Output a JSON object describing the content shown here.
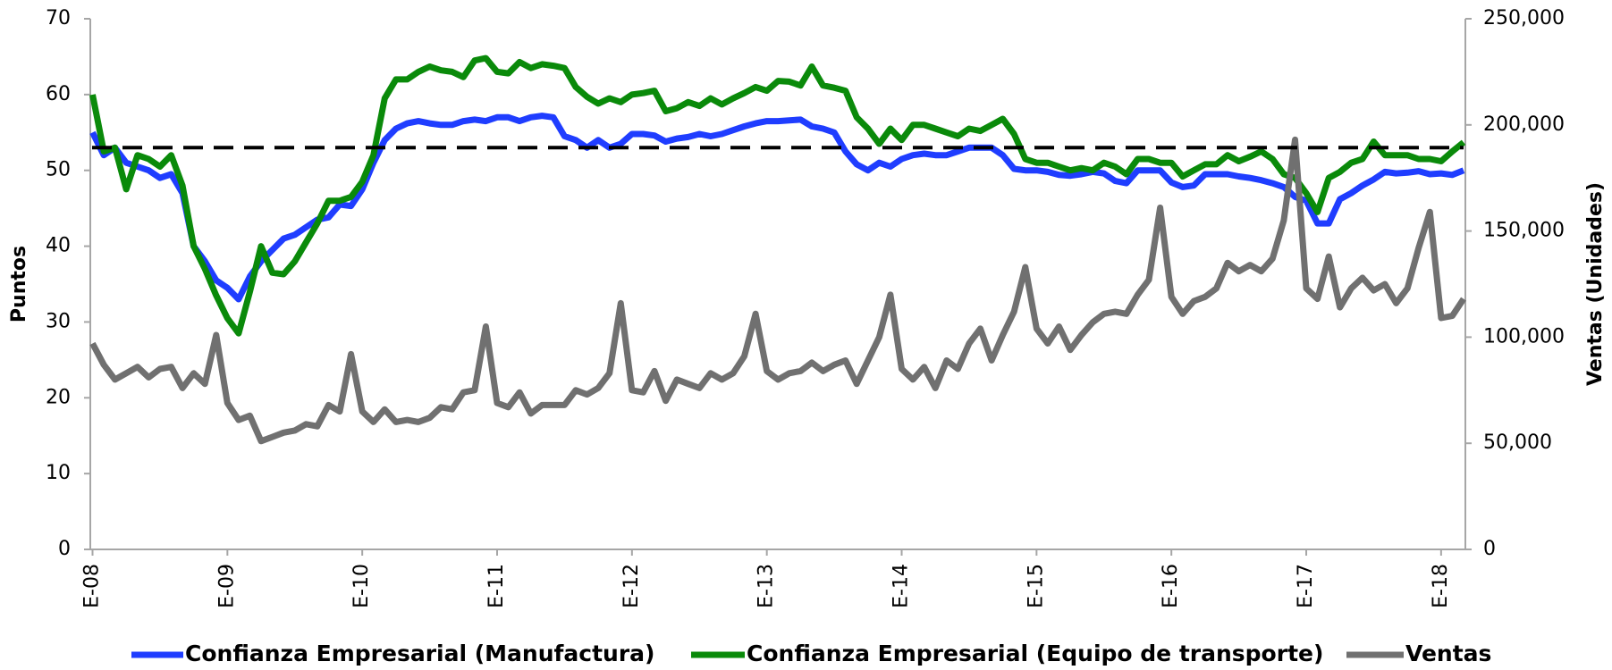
{
  "chart_data": {
    "type": "line",
    "y_label": "Puntos",
    "y2_label": "Ventas (Unidades)",
    "categories": [
      "E-08",
      null,
      null,
      null,
      null,
      null,
      null,
      null,
      null,
      null,
      null,
      null,
      "E-09",
      null,
      null,
      null,
      null,
      null,
      null,
      null,
      null,
      null,
      null,
      null,
      "E-10",
      null,
      null,
      null,
      null,
      null,
      null,
      null,
      null,
      null,
      null,
      null,
      "E-11",
      null,
      null,
      null,
      null,
      null,
      null,
      null,
      null,
      null,
      null,
      null,
      "E-12",
      null,
      null,
      null,
      null,
      null,
      null,
      null,
      null,
      null,
      null,
      null,
      "E-13",
      null,
      null,
      null,
      null,
      null,
      null,
      null,
      null,
      null,
      null,
      null,
      "E-14",
      null,
      null,
      null,
      null,
      null,
      null,
      null,
      null,
      null,
      null,
      null,
      "E-15",
      null,
      null,
      null,
      null,
      null,
      null,
      null,
      null,
      null,
      null,
      null,
      "E-16",
      null,
      null,
      null,
      null,
      null,
      null,
      null,
      null,
      null,
      null,
      null,
      "E-17",
      null,
      null,
      null,
      null,
      null,
      null,
      null,
      null,
      null,
      null,
      null,
      "E-18",
      null,
      null
    ],
    "series": [
      {
        "name": "Confianza Empresarial (Manufactura)",
        "color": "#1f3dff",
        "values": [
          55,
          52,
          53,
          51,
          50.5,
          50,
          49,
          49.5,
          47,
          40,
          38,
          35.5,
          34.5,
          33,
          36,
          38,
          39.5,
          41,
          41.5,
          42.5,
          43.5,
          43.8,
          45.5,
          45.3,
          47.5,
          51,
          54,
          55.5,
          56.2,
          56.5,
          56.2,
          56,
          56,
          56.5,
          56.7,
          56.5,
          57,
          57,
          56.5,
          57,
          57.2,
          57,
          54.5,
          54,
          53,
          54,
          53,
          53.5,
          54.8,
          54.8,
          54.6,
          53.8,
          54.2,
          54.4,
          54.8,
          54.5,
          54.8,
          55.3,
          55.8,
          56.2,
          56.5,
          56.5,
          56.6,
          56.7,
          55.8,
          55.5,
          55,
          52.5,
          50.8,
          50,
          51,
          50.5,
          51.5,
          52,
          52.2,
          52,
          52,
          52.5,
          53,
          53,
          53,
          52,
          50.2,
          50,
          50,
          49.8,
          49.4,
          49.3,
          49.5,
          49.8,
          49.6,
          48.6,
          48.3,
          50,
          50,
          50,
          48.4,
          47.8,
          48,
          49.5,
          49.5,
          49.5,
          49.2,
          49,
          48.7,
          48.3,
          47.8,
          46.5,
          46,
          43,
          43,
          46.2,
          47,
          48,
          48.8,
          49.8,
          49.6,
          49.7,
          49.9,
          49.5,
          49.6,
          49.4,
          50
        ]
      },
      {
        "name": "Confianza Empresarial (Equipo de transporte)",
        "color": "#0a8a0a",
        "values": [
          60,
          52.5,
          53,
          47.5,
          52,
          51.5,
          50.5,
          52,
          48,
          40,
          37,
          33.5,
          30.5,
          28.5,
          34,
          40,
          36.5,
          36.3,
          38,
          40.5,
          43,
          46,
          46,
          46.5,
          48.5,
          52,
          59.5,
          62,
          62,
          63,
          63.7,
          63.2,
          63,
          62.3,
          64.5,
          64.8,
          63,
          62.8,
          64.3,
          63.5,
          64,
          63.8,
          63.5,
          61,
          59.7,
          58.8,
          59.5,
          59,
          60,
          60.2,
          60.5,
          57.8,
          58.2,
          59,
          58.5,
          59.5,
          58.7,
          59.5,
          60.2,
          61,
          60.5,
          61.8,
          61.7,
          61.2,
          63.7,
          61.2,
          60.9,
          60.5,
          57,
          55.5,
          53.5,
          55.5,
          54,
          56,
          56,
          55.5,
          55,
          54.5,
          55.5,
          55.2,
          56,
          56.8,
          54.8,
          51.5,
          51,
          51,
          50.5,
          50,
          50.3,
          50,
          51,
          50.5,
          49.5,
          51.5,
          51.5,
          51,
          51,
          49.2,
          50,
          50.8,
          50.8,
          52,
          51.2,
          51.8,
          52.5,
          51.5,
          49.5,
          49,
          47,
          44.5,
          49,
          49.8,
          51,
          51.5,
          53.8,
          52,
          52,
          52,
          51.5,
          51.5,
          51.2,
          52.5,
          53.7
        ]
      },
      {
        "name": "Ventas",
        "color": "#707070",
        "axis": "y2",
        "values": [
          97000,
          87000,
          80000,
          83000,
          86000,
          81000,
          85000,
          86000,
          76000,
          83000,
          78000,
          101000,
          69000,
          61000,
          63000,
          51000,
          53000,
          55000,
          56000,
          59000,
          58000,
          68000,
          65000,
          92000,
          65000,
          60000,
          66000,
          60000,
          61000,
          60000,
          62000,
          67000,
          66000,
          74000,
          75000,
          105000,
          69000,
          67000,
          74000,
          64000,
          68000,
          68000,
          68000,
          75000,
          73000,
          76000,
          83000,
          116000,
          75000,
          74000,
          84000,
          70000,
          80000,
          78000,
          76000,
          83000,
          80000,
          83000,
          91000,
          111000,
          84000,
          80000,
          83000,
          84000,
          88000,
          84000,
          87000,
          89000,
          78000,
          89000,
          100000,
          120000,
          85000,
          80000,
          86000,
          76000,
          89000,
          85000,
          97000,
          104000,
          89000,
          101000,
          112000,
          133000,
          104000,
          97000,
          105000,
          94000,
          101000,
          107000,
          111000,
          112000,
          111000,
          120000,
          127000,
          161000,
          119000,
          111000,
          117000,
          119000,
          123000,
          135000,
          131000,
          134000,
          131000,
          137000,
          155000,
          193000,
          123000,
          118000,
          138000,
          114000,
          123000,
          128000,
          122000,
          125000,
          116000,
          123000,
          142000,
          159000,
          109000,
          110000,
          118000
        ]
      }
    ],
    "reference_line": 53,
    "ylim": [
      0,
      70
    ],
    "yticks": [
      0,
      10,
      20,
      30,
      40,
      50,
      60,
      70
    ],
    "y2lim": [
      0,
      250000
    ],
    "y2ticks": [
      0,
      {
        "value": 50000,
        "label": "50,000"
      },
      {
        "value": 100000,
        "label": "100,000"
      },
      {
        "value": 150000,
        "label": "150,000"
      },
      {
        "value": 200000,
        "label": "200,000"
      },
      {
        "value": 250000,
        "label": "250,000"
      }
    ],
    "legend": "bottom"
  }
}
